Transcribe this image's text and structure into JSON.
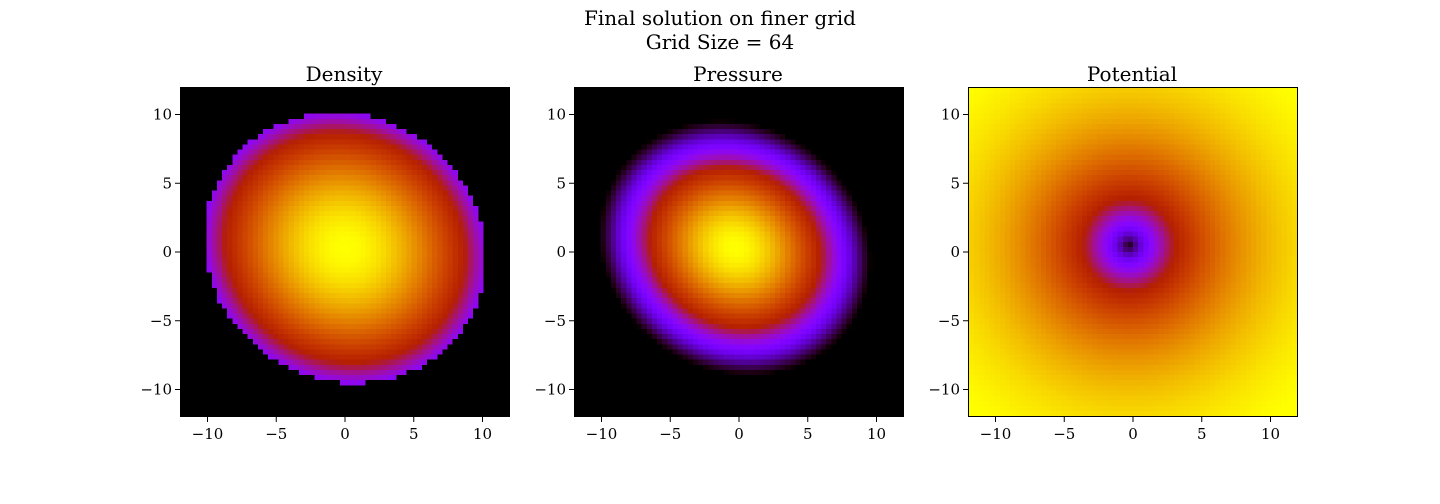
{
  "suptitle": {
    "line1": "Final solution on finer grid",
    "line2": "Grid Size = 64"
  },
  "chart_data": [
    {
      "type": "heatmap",
      "title": "Density",
      "colormap": "gnuplot",
      "grid_size": 64,
      "xlim": [
        -12,
        12
      ],
      "ylim": [
        -12,
        12
      ],
      "xticks": [
        -10,
        -5,
        0,
        5,
        10
      ],
      "yticks": [
        -10,
        -5,
        0,
        5,
        10
      ],
      "xtick_labels": [
        "−10",
        "−5",
        "0",
        "5",
        "10"
      ],
      "ytick_labels": [
        "−10",
        "−5",
        "0",
        "5",
        "10"
      ],
      "field": {
        "shape": "tilted ellipse, flat-topped (cut off at boundary)",
        "center": [
          0,
          0.3
        ],
        "radius_x": 10.5,
        "radius_y": 9.7,
        "tilt_deg": -30,
        "peak": 1.0,
        "edge_level": 0.3,
        "outside_level": 0.0
      }
    },
    {
      "type": "heatmap",
      "title": "Pressure",
      "colormap": "gnuplot",
      "grid_size": 64,
      "xlim": [
        -12,
        12
      ],
      "ylim": [
        -12,
        12
      ],
      "xticks": [
        -10,
        -5,
        0,
        5,
        10
      ],
      "yticks": [
        -10,
        -5,
        0,
        5,
        10
      ],
      "xtick_labels": [
        "−10",
        "−5",
        "0",
        "5",
        "10"
      ],
      "ytick_labels": [
        "−10",
        "−5",
        "0",
        "5",
        "10"
      ],
      "field": {
        "shape": "tilted ellipse, smooth falloff to zero at edge",
        "center": [
          -0.3,
          0.3
        ],
        "radius_x": 10.2,
        "radius_y": 9.0,
        "tilt_deg": -30,
        "peak": 1.0,
        "outside_level": 0.0
      }
    },
    {
      "type": "heatmap",
      "title": "Potential",
      "colormap": "gnuplot",
      "grid_size": 64,
      "xlim": [
        -12,
        12
      ],
      "ylim": [
        -12,
        12
      ],
      "xticks": [
        -10,
        -5,
        0,
        5,
        10
      ],
      "yticks": [
        -10,
        -5,
        0,
        5,
        10
      ],
      "xtick_labels": [
        "−10",
        "−5",
        "0",
        "5",
        "10"
      ],
      "ytick_labels": [
        "−10",
        "−5",
        "0",
        "5",
        "10"
      ],
      "field": {
        "shape": "radial well, minimum at center rising outward",
        "center": [
          -0.3,
          0.5
        ],
        "min_level": 0.0,
        "corner_level": 1.0
      }
    }
  ]
}
